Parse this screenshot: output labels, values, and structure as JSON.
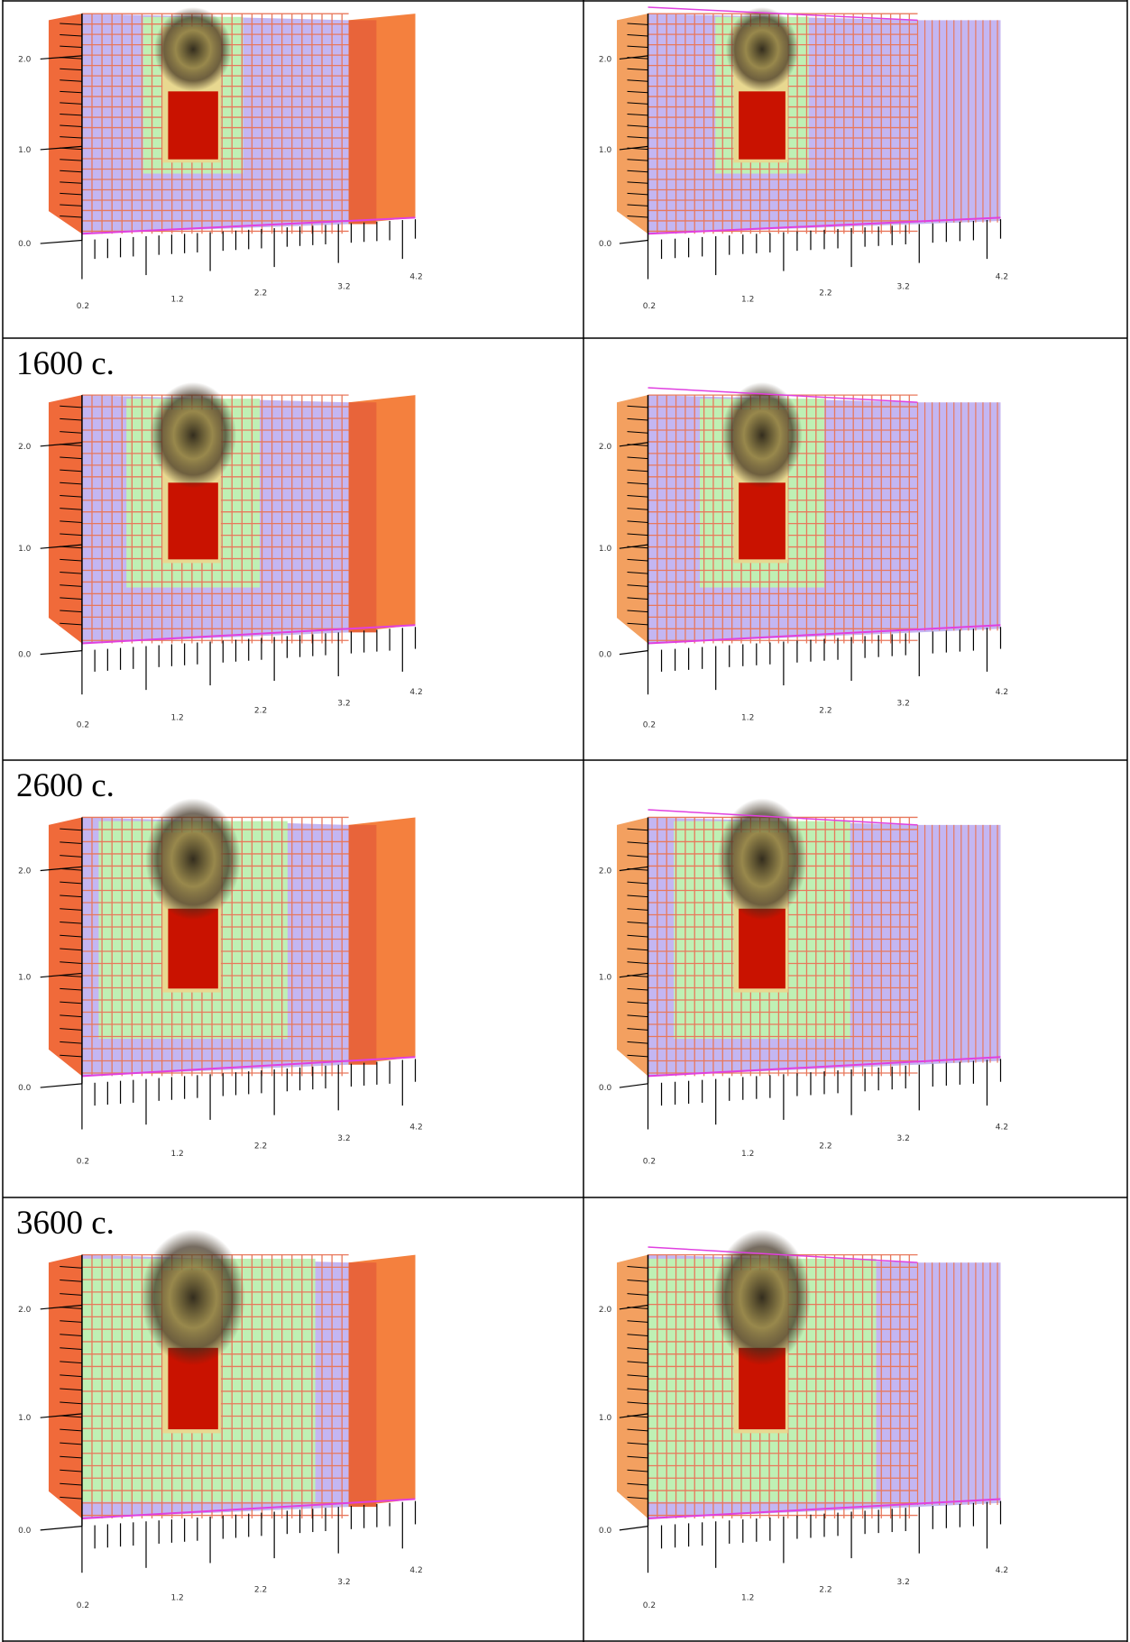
{
  "table": {
    "row_labels": [
      "1600 c.",
      "2600 c.",
      "3600 c."
    ]
  },
  "axes": {
    "y_ticks": [
      "0.0",
      "1.0",
      "2.0"
    ],
    "x_ticks": [
      "0.2",
      "1.2",
      "2.2",
      "3.2",
      "4.2"
    ]
  }
}
